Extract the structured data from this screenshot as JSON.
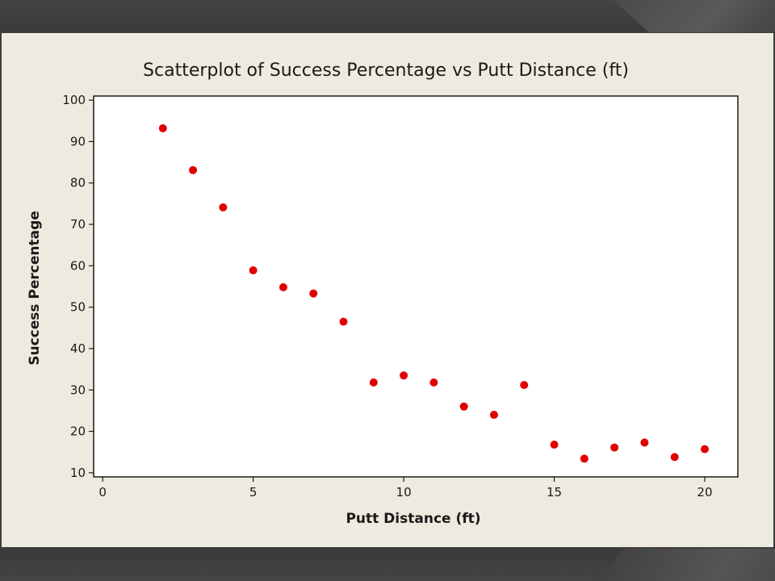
{
  "chart_data": {
    "type": "scatter",
    "title": "Scatterplot of Success Percentage vs Putt Distance (ft)",
    "xlabel": "Putt Distance (ft)",
    "ylabel": "Success Percentage",
    "xlim": [
      -0.3,
      21.1
    ],
    "ylim": [
      9,
      101
    ],
    "xticks": [
      0,
      5,
      10,
      15,
      20
    ],
    "yticks": [
      10,
      20,
      30,
      40,
      50,
      60,
      70,
      80,
      90,
      100
    ],
    "grid": false,
    "marker_color": "#e00000",
    "points": [
      {
        "x": 2,
        "y": 93.2
      },
      {
        "x": 3,
        "y": 83.1
      },
      {
        "x": 4,
        "y": 74.1
      },
      {
        "x": 5,
        "y": 58.9
      },
      {
        "x": 6,
        "y": 54.8
      },
      {
        "x": 7,
        "y": 53.3
      },
      {
        "x": 8,
        "y": 46.5
      },
      {
        "x": 9,
        "y": 31.8
      },
      {
        "x": 10,
        "y": 33.5
      },
      {
        "x": 11,
        "y": 31.8
      },
      {
        "x": 12,
        "y": 26.0
      },
      {
        "x": 13,
        "y": 24.0
      },
      {
        "x": 14,
        "y": 31.2
      },
      {
        "x": 15,
        "y": 16.8
      },
      {
        "x": 16,
        "y": 13.4
      },
      {
        "x": 17,
        "y": 16.1
      },
      {
        "x": 18,
        "y": 17.3
      },
      {
        "x": 19,
        "y": 13.8
      },
      {
        "x": 20,
        "y": 15.7
      }
    ]
  },
  "colors": {
    "background_frame": "#3d3d3d",
    "panel": "#efeadf",
    "plot_area": "#ffffff",
    "marker": "#e00000"
  }
}
